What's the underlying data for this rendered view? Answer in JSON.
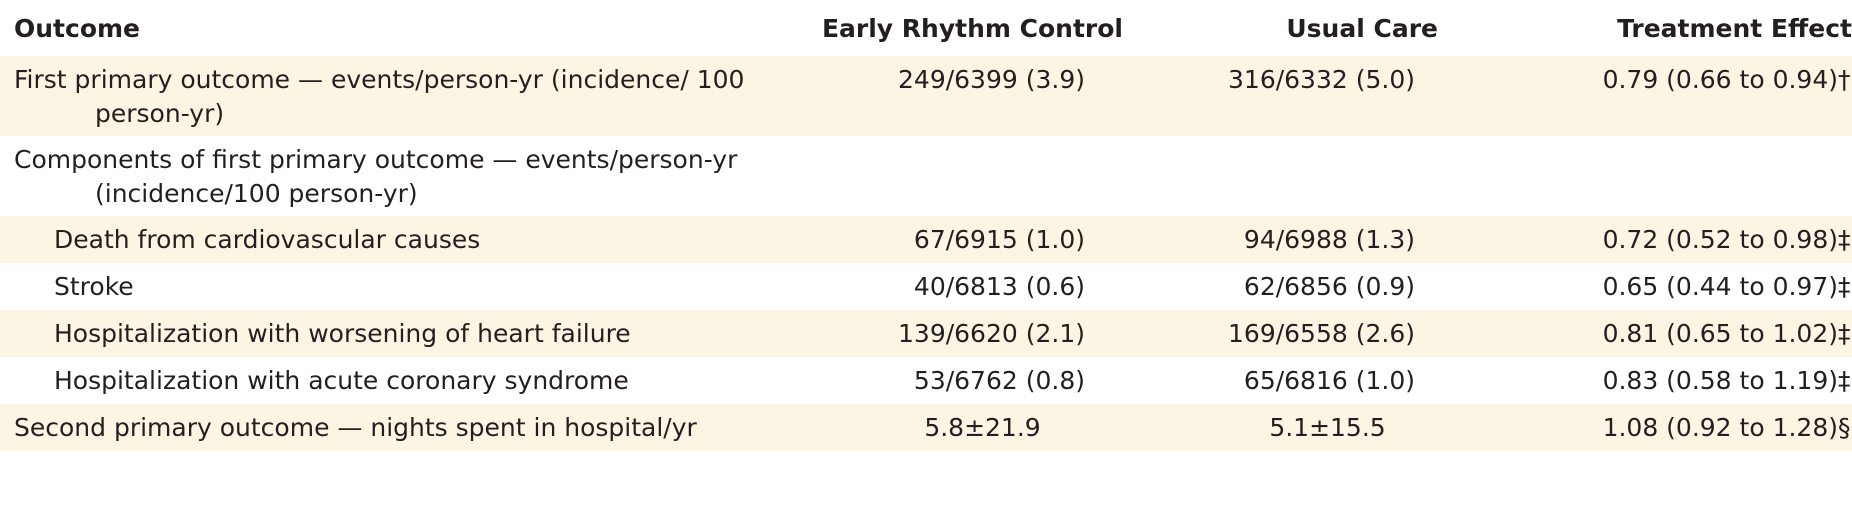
{
  "table": {
    "headers": {
      "outcome": "Outcome",
      "early": "Early Rhythm Control",
      "usual": "Usual Care",
      "effect": "Treatment Effect"
    },
    "rows": [
      {
        "outcome": "First primary outcome — events/person-yr (incidence/ 100 person-yr)",
        "early": "249/6399 (3.9)",
        "usual": "316/6332 (5.0)",
        "effect": "0.79 (0.66 to 0.94)",
        "marker": "†"
      },
      {
        "outcome": "Components of first primary outcome — events/person-yr (incidence/100 person-yr)",
        "early": "",
        "usual": "",
        "effect": "",
        "marker": ""
      },
      {
        "outcome": "Death from cardiovascular causes",
        "early": "67/6915 (1.0)",
        "usual": "94/6988 (1.3)",
        "effect": "0.72 (0.52 to 0.98)",
        "marker": "‡"
      },
      {
        "outcome": "Stroke",
        "early": "40/6813 (0.6)",
        "usual": "62/6856 (0.9)",
        "effect": "0.65 (0.44 to 0.97)",
        "marker": "‡"
      },
      {
        "outcome": "Hospitalization with worsening of heart failure",
        "early": "139/6620 (2.1)",
        "usual": "169/6558 (2.6)",
        "effect": "0.81 (0.65 to 1.02)",
        "marker": "‡"
      },
      {
        "outcome": "Hospitalization with acute coronary syndrome",
        "early": "53/6762 (0.8)",
        "usual": "65/6816 (1.0)",
        "effect": "0.83 (0.58 to 1.19)",
        "marker": "‡"
      },
      {
        "outcome": "Second primary outcome — nights spent in hospital/yr",
        "early": "5.8±21.9",
        "usual": "5.1±15.5",
        "effect": "1.08 (0.92 to 1.28)",
        "marker": "§"
      }
    ]
  }
}
